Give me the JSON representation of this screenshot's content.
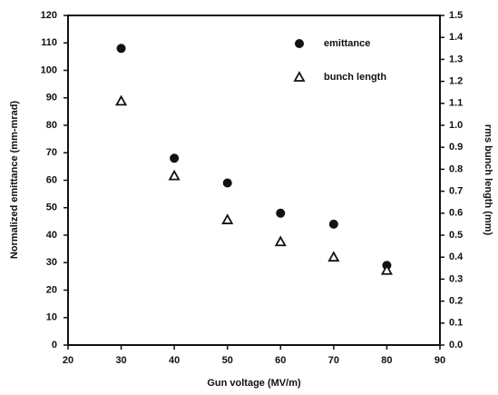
{
  "chart_data": {
    "type": "scatter",
    "x_label": "Gun voltage (MV/m)",
    "y_label": "Normalized emittance (mm-mrad)",
    "y2_label": "rms bunch length (mm)",
    "x": [
      30,
      40,
      50,
      60,
      70,
      80
    ],
    "series": [
      {
        "name": "emittance",
        "color": "#111111",
        "marker": "circle",
        "values": [
          108,
          68,
          59,
          48,
          44,
          29
        ]
      },
      {
        "name": "bunch length",
        "color": "#111111",
        "marker": "triangle",
        "axis": "y2",
        "values": [
          1.11,
          0.77,
          0.57,
          0.47,
          0.4,
          0.34
        ]
      }
    ],
    "xlim": [
      20,
      90
    ],
    "xticks": [
      20,
      30,
      40,
      50,
      60,
      70,
      80,
      90
    ],
    "ylim": [
      0,
      120
    ],
    "yticks": [
      0,
      10,
      20,
      30,
      40,
      50,
      60,
      70,
      80,
      90,
      100,
      110,
      120
    ],
    "y2lim": [
      0,
      1.5
    ],
    "y2ticks": [
      {
        "value": 0,
        "label": "0.0"
      },
      0.1,
      0.2,
      0.3,
      0.4,
      0.5,
      0.6,
      0.7,
      0.8,
      0.9,
      {
        "value": 1,
        "label": "1.0"
      },
      1.1,
      1.2,
      1.3,
      1.4,
      1.5
    ],
    "legend": "upper right",
    "grid": false
  }
}
